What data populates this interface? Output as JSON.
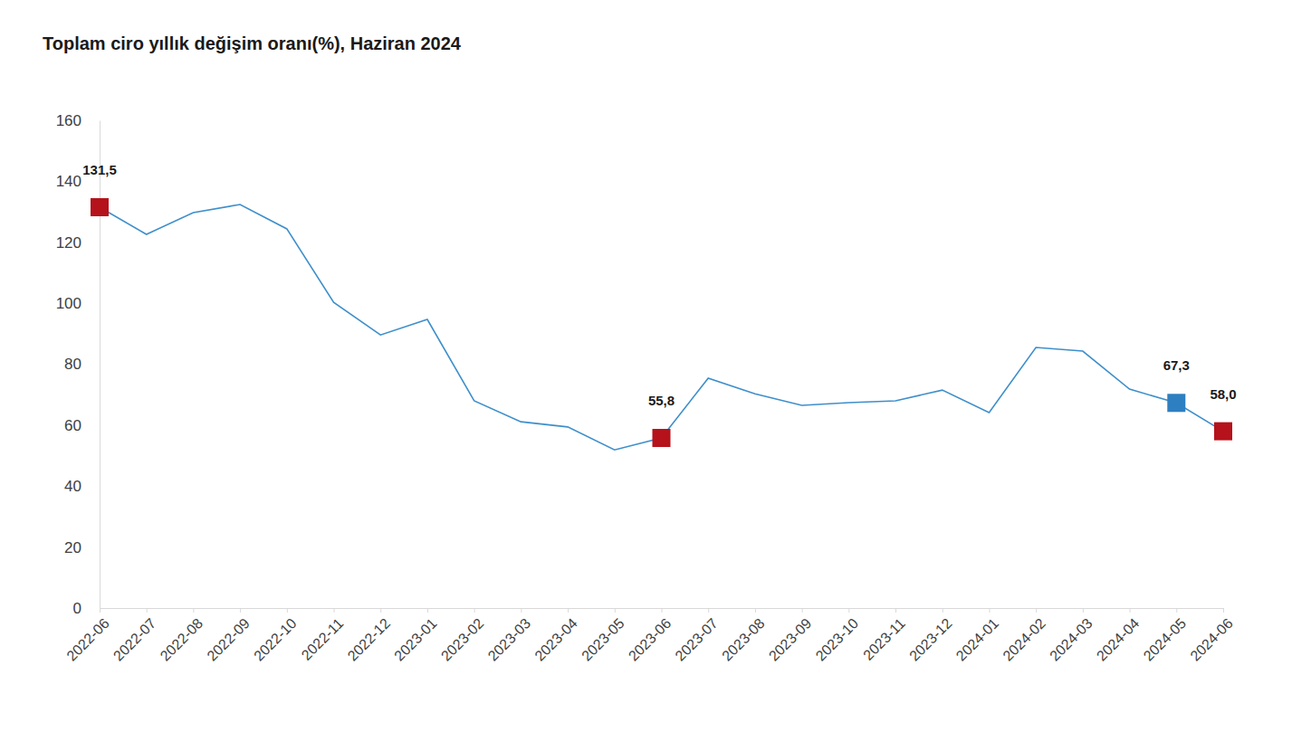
{
  "chart_data": {
    "type": "line",
    "title": "Toplam ciro yıllık değişim oranı(%), Haziran 2024",
    "categories": [
      "2022-06",
      "2022-07",
      "2022-08",
      "2022-09",
      "2022-10",
      "2022-11",
      "2022-12",
      "2023-01",
      "2023-02",
      "2023-03",
      "2023-04",
      "2023-05",
      "2023-06",
      "2023-07",
      "2023-08",
      "2023-09",
      "2023-10",
      "2023-11",
      "2023-12",
      "2024-01",
      "2024-02",
      "2024-03",
      "2024-04",
      "2024-05",
      "2024-06"
    ],
    "values": [
      131.5,
      122.6,
      129.7,
      132.4,
      124.4,
      100.3,
      89.6,
      94.7,
      68.0,
      61.1,
      59.4,
      51.9,
      55.8,
      75.4,
      70.3,
      66.5,
      67.4,
      68.0,
      71.5,
      64.1,
      85.5,
      84.3,
      71.8,
      67.3,
      58.0
    ],
    "value_labels": [
      "131,5",
      null,
      null,
      null,
      null,
      null,
      null,
      null,
      null,
      null,
      null,
      null,
      "55,8",
      null,
      null,
      null,
      null,
      null,
      null,
      null,
      null,
      null,
      null,
      "67,3",
      "58,0"
    ],
    "data_labels": true,
    "color": "#3e8fcb",
    "marker": "square",
    "colors": [
      "#b5121b",
      null,
      null,
      null,
      null,
      null,
      null,
      null,
      null,
      null,
      null,
      null,
      "#b5121b",
      null,
      null,
      null,
      null,
      null,
      null,
      null,
      null,
      null,
      null,
      "#2e7fc1",
      "#b5121b"
    ],
    "ylim": [
      0,
      160
    ],
    "yticks": [
      0,
      20,
      40,
      60,
      80,
      100,
      120,
      140,
      160
    ],
    "grid": false
  }
}
